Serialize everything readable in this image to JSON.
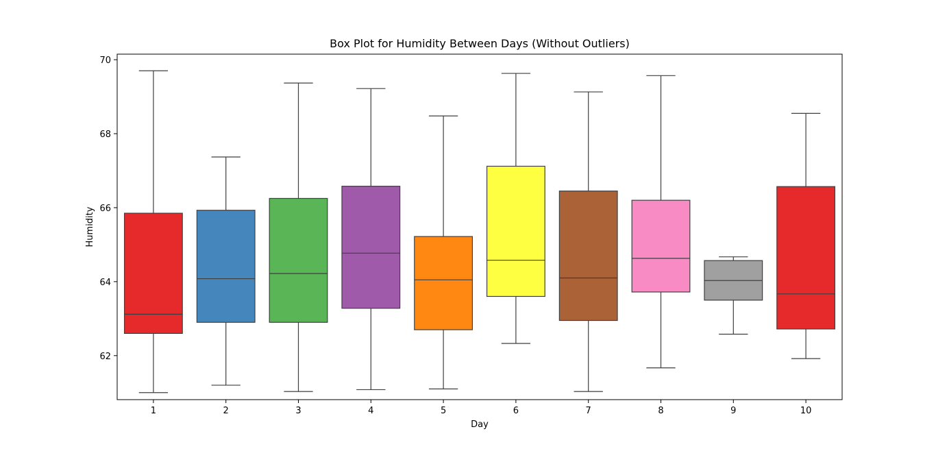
{
  "chart_data": {
    "type": "box",
    "title": "Box Plot for Humidity Between Days (Without Outliers)",
    "xlabel": "Day",
    "ylabel": "Humidity",
    "ylim": [
      60.81,
      70.15
    ],
    "yticks": [
      62,
      64,
      66,
      68,
      70
    ],
    "categories": [
      "1",
      "2",
      "3",
      "4",
      "5",
      "6",
      "7",
      "8",
      "9",
      "10"
    ],
    "colors": [
      "#e41a1c",
      "#377eb8",
      "#4daf4a",
      "#984ea3",
      "#ff7f00",
      "#ffff33",
      "#a65628",
      "#f781bf",
      "#999999",
      "#e41a1c"
    ],
    "boxes": [
      {
        "whisker_low": 61.0,
        "q1": 62.6,
        "median": 63.12,
        "q3": 65.85,
        "whisker_high": 69.7
      },
      {
        "whisker_low": 61.2,
        "q1": 62.9,
        "median": 64.08,
        "q3": 65.93,
        "whisker_high": 67.37
      },
      {
        "whisker_low": 61.03,
        "q1": 62.9,
        "median": 64.22,
        "q3": 66.25,
        "whisker_high": 69.37
      },
      {
        "whisker_low": 61.08,
        "q1": 63.28,
        "median": 64.77,
        "q3": 66.58,
        "whisker_high": 69.22
      },
      {
        "whisker_low": 61.1,
        "q1": 62.7,
        "median": 64.05,
        "q3": 65.22,
        "whisker_high": 68.48
      },
      {
        "whisker_low": 62.33,
        "q1": 63.6,
        "median": 64.58,
        "q3": 67.12,
        "whisker_high": 69.63
      },
      {
        "whisker_low": 61.03,
        "q1": 62.95,
        "median": 64.1,
        "q3": 66.45,
        "whisker_high": 69.13
      },
      {
        "whisker_low": 61.67,
        "q1": 63.72,
        "median": 64.63,
        "q3": 66.2,
        "whisker_high": 69.57
      },
      {
        "whisker_low": 62.58,
        "q1": 63.5,
        "median": 64.03,
        "q3": 64.57,
        "whisker_high": 64.67
      },
      {
        "whisker_low": 61.92,
        "q1": 62.72,
        "median": 63.67,
        "q3": 66.57,
        "whisker_high": 68.55
      }
    ]
  }
}
